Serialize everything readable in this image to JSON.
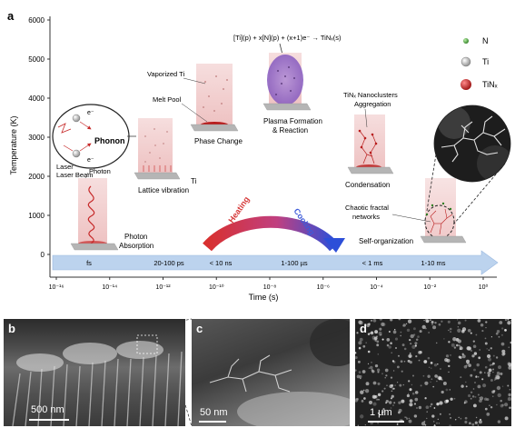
{
  "panel_a": {
    "letter": "a",
    "y_axis_label": "Temperature (K)",
    "y_ticks": [
      "0",
      "1000",
      "2000",
      "3000",
      "4000",
      "5000",
      "6000"
    ],
    "x_axis_label": "Time (s)",
    "x_ticks": [
      "10⁻¹⁶",
      "10⁻¹⁴",
      "10⁻¹²",
      "10⁻¹⁰",
      "10⁻⁸",
      "10⁻⁶",
      "10⁻⁴",
      "10⁻²",
      "10⁰"
    ],
    "timeline_labels": [
      "fs",
      "20-100 ps",
      "< 10 ns",
      "1-100 µs",
      "< 1 ms",
      "1-10 ms"
    ],
    "heating_label": "Heating",
    "cooling_label": "Cooling",
    "legend": [
      {
        "label": "N",
        "color": "#3a8a2e"
      },
      {
        "label": "Ti",
        "color": "#9a9a9a"
      },
      {
        "label": "TiNₓ",
        "color": "#b01818"
      }
    ],
    "equation": "[Ti](p) + x[N](p) + (x+1)e⁻ → TiNₓ(s)",
    "stages": {
      "laser_beam": "Laser Beam",
      "photon": "Photon",
      "photon_absorption_1": "Photon",
      "photon_absorption_2": "Absorption",
      "phonon": "Phonon",
      "electron_1": "e⁻",
      "electron_2": "e⁻",
      "lattice_vibration": "Lattice vibration",
      "ti": "Ti",
      "vaporized_ti": "Vaporized Ti",
      "melt_pool": "Melt Pool",
      "phase_change": "Phase Change",
      "plasma_1": "Plasma Formation",
      "plasma_2": "& Reaction",
      "nanoclusters_1": "TiNₓ Nanoclusters",
      "nanoclusters_2": "Aggregation",
      "condensation": "Condensation",
      "chaotic_1": "Chaotic fractal",
      "chaotic_2": "networks",
      "self_organization": "Self-organization"
    }
  },
  "panel_b": {
    "letter": "b",
    "scale": "500 nm"
  },
  "panel_c": {
    "letter": "c",
    "scale": "50 nm"
  },
  "panel_d": {
    "letter": "d",
    "scale": "1 µm"
  },
  "colors": {
    "arrow_timeline": "#b9d2ee",
    "heating": "#d63a3a",
    "cooling": "#3d5bd9",
    "beam": "#f2d3d3",
    "substrate": "#b5b5b5"
  }
}
